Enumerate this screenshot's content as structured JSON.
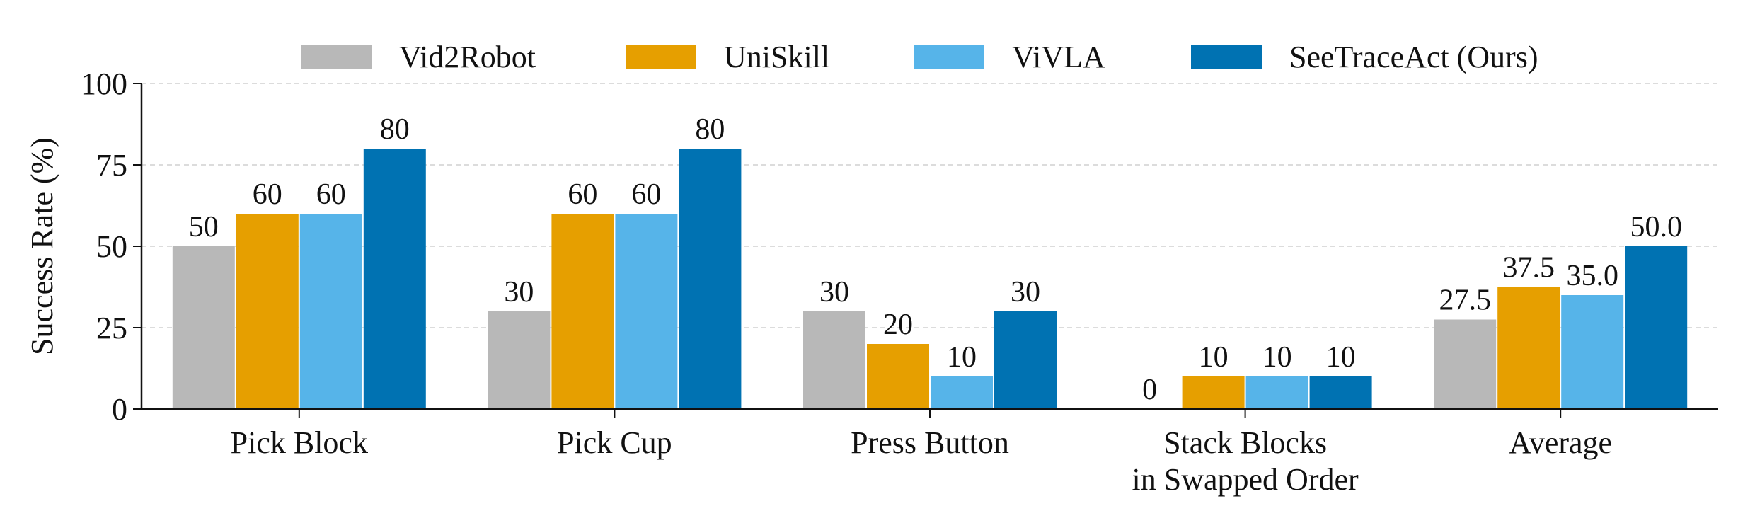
{
  "chart_data": {
    "type": "bar",
    "ylabel": "Success Rate (%)",
    "ylim": [
      0,
      100
    ],
    "yticks": [
      0,
      25,
      50,
      75,
      100
    ],
    "grid": true,
    "legend_placement": "top-center",
    "categories": [
      [
        "Pick Block"
      ],
      [
        "Pick Cup"
      ],
      [
        "Press Button"
      ],
      [
        "Stack Blocks",
        "in Swapped Order"
      ],
      [
        "Average"
      ]
    ],
    "series": [
      {
        "name": "Vid2Robot",
        "color": "#b8b8b8",
        "values": [
          50,
          30,
          30,
          0,
          27.5
        ],
        "labels": [
          "50",
          "30",
          "30",
          "0",
          "27.5"
        ]
      },
      {
        "name": "UniSkill",
        "color": "#e69f00",
        "values": [
          60,
          60,
          20,
          10,
          37.5
        ],
        "labels": [
          "60",
          "60",
          "20",
          "10",
          "37.5"
        ]
      },
      {
        "name": "ViVLA",
        "color": "#56b4e9",
        "values": [
          60,
          60,
          10,
          10,
          35.0
        ],
        "labels": [
          "60",
          "60",
          "10",
          "10",
          "35.0"
        ]
      },
      {
        "name": "SeeTraceAct (Ours)",
        "color": "#0072b2",
        "values": [
          80,
          80,
          30,
          10,
          50.0
        ],
        "labels": [
          "80",
          "80",
          "30",
          "10",
          "50.0"
        ]
      }
    ]
  }
}
